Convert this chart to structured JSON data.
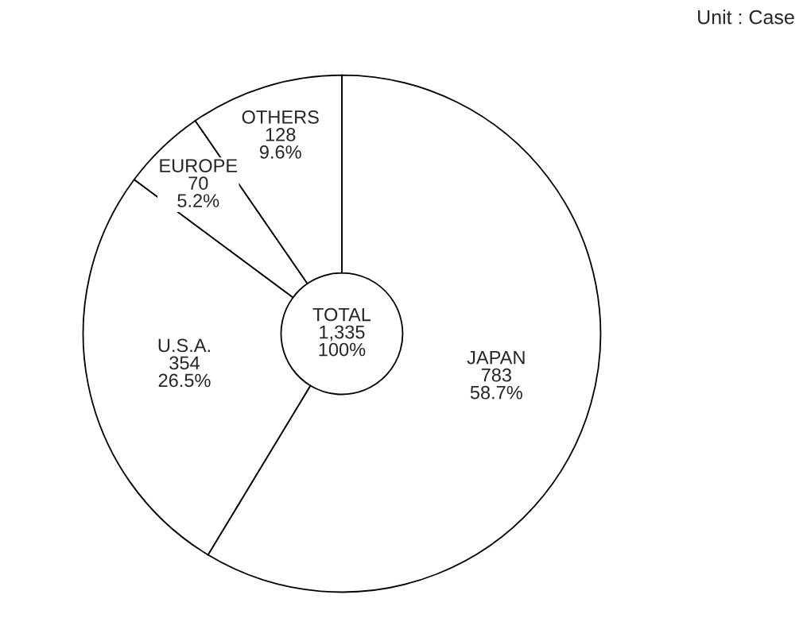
{
  "chart_data": {
    "type": "donut",
    "categories": [
      "JAPAN",
      "U.S.A.",
      "EUROPE",
      "OTHERS"
    ],
    "values": [
      783,
      354,
      70,
      128
    ],
    "value_labels": [
      "783\n58.7%",
      "354\n26.5%",
      "70\n5.2%",
      "128\n9.6%"
    ],
    "colors": [
      "#ffffff",
      "#ffffff",
      "#ffffff",
      "#ffffff"
    ],
    "annotations": [
      "TOTAL\n1,335\n100%",
      "Unit : Case"
    ]
  }
}
